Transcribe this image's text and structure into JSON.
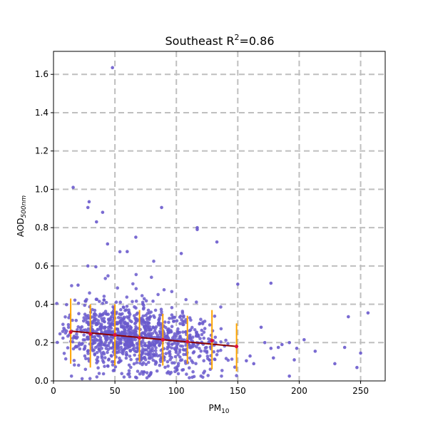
{
  "chart_data": {
    "type": "scatter",
    "title": {
      "prefix": "Southeast R",
      "superscript": "2",
      "suffix": "=0.86"
    },
    "xlabel": {
      "main": "PM",
      "sub": "10"
    },
    "ylabel": {
      "main": "AOD",
      "sub": "500nm"
    },
    "xlim": [
      0,
      270
    ],
    "ylim": [
      0,
      1.72
    ],
    "x_ticks": [
      0,
      50,
      100,
      150,
      200,
      250
    ],
    "x_tick_labels": [
      "0",
      "50",
      "100",
      "150",
      "200",
      "250"
    ],
    "y_ticks": [
      0.0,
      0.2,
      0.4,
      0.6,
      0.8,
      1.0,
      1.2,
      1.4,
      1.6
    ],
    "y_tick_labels": [
      "0.0",
      "0.2",
      "0.4",
      "0.6",
      "0.8",
      "1.0",
      "1.2",
      "1.4",
      "1.6"
    ],
    "grid": true,
    "colors": {
      "scatter": "#6a5acd",
      "fit_line": "#8b0000",
      "error_bar": "#ffa500",
      "bin_marker": "#dc143c",
      "grid": "#bfbfbf"
    },
    "fit_line": {
      "x": [
        14,
        149
      ],
      "y": [
        0.26,
        0.18
      ]
    },
    "binned_means": [
      {
        "x": 14,
        "mean": 0.255,
        "low": 0.09,
        "high": 0.43
      },
      {
        "x": 30,
        "mean": 0.245,
        "low": 0.07,
        "high": 0.4
      },
      {
        "x": 50,
        "mean": 0.24,
        "low": 0.08,
        "high": 0.4
      },
      {
        "x": 70,
        "mean": 0.225,
        "low": 0.1,
        "high": 0.37
      },
      {
        "x": 89,
        "mean": 0.215,
        "low": 0.08,
        "high": 0.35
      },
      {
        "x": 109,
        "mean": 0.205,
        "low": 0.09,
        "high": 0.34
      },
      {
        "x": 129,
        "mean": 0.21,
        "low": 0.06,
        "high": 0.37
      },
      {
        "x": 149,
        "mean": 0.18,
        "low": 0.05,
        "high": 0.3
      }
    ],
    "outliers": [
      {
        "x": 48,
        "y": 1.635
      },
      {
        "x": 16,
        "y": 1.01
      },
      {
        "x": 29,
        "y": 0.935
      },
      {
        "x": 28,
        "y": 0.905
      },
      {
        "x": 40,
        "y": 0.88
      },
      {
        "x": 88,
        "y": 0.905
      },
      {
        "x": 35,
        "y": 0.83
      },
      {
        "x": 117,
        "y": 0.8
      },
      {
        "x": 117,
        "y": 0.79
      },
      {
        "x": 133,
        "y": 0.725
      },
      {
        "x": 67,
        "y": 0.75
      },
      {
        "x": 104,
        "y": 0.665
      },
      {
        "x": 150,
        "y": 0.505
      },
      {
        "x": 177,
        "y": 0.51
      },
      {
        "x": 169,
        "y": 0.28
      },
      {
        "x": 172,
        "y": 0.2
      },
      {
        "x": 177,
        "y": 0.17
      },
      {
        "x": 183,
        "y": 0.175
      },
      {
        "x": 186,
        "y": 0.19
      },
      {
        "x": 192,
        "y": 0.2
      },
      {
        "x": 198,
        "y": 0.17
      },
      {
        "x": 204,
        "y": 0.215
      },
      {
        "x": 213,
        "y": 0.155
      },
      {
        "x": 229,
        "y": 0.09
      },
      {
        "x": 237,
        "y": 0.175
      },
      {
        "x": 240,
        "y": 0.335
      },
      {
        "x": 247,
        "y": 0.07
      },
      {
        "x": 250,
        "y": 0.145
      },
      {
        "x": 256,
        "y": 0.355
      },
      {
        "x": 192,
        "y": 0.025
      },
      {
        "x": 160,
        "y": 0.13
      },
      {
        "x": 163,
        "y": 0.09
      },
      {
        "x": 157,
        "y": 0.105
      },
      {
        "x": 179,
        "y": 0.12
      },
      {
        "x": 196,
        "y": 0.11
      },
      {
        "x": 20,
        "y": 0.5
      },
      {
        "x": 28,
        "y": 0.6
      },
      {
        "x": 44,
        "y": 0.715
      },
      {
        "x": 60,
        "y": 0.675
      }
    ],
    "cloud": {
      "count": 1100,
      "seed": 12345,
      "x_range": [
        2,
        150
      ],
      "x_mode": 55,
      "y_center": 0.21,
      "y_spread": 0.085,
      "y_min": 0.0,
      "y_max": 0.7
    }
  }
}
